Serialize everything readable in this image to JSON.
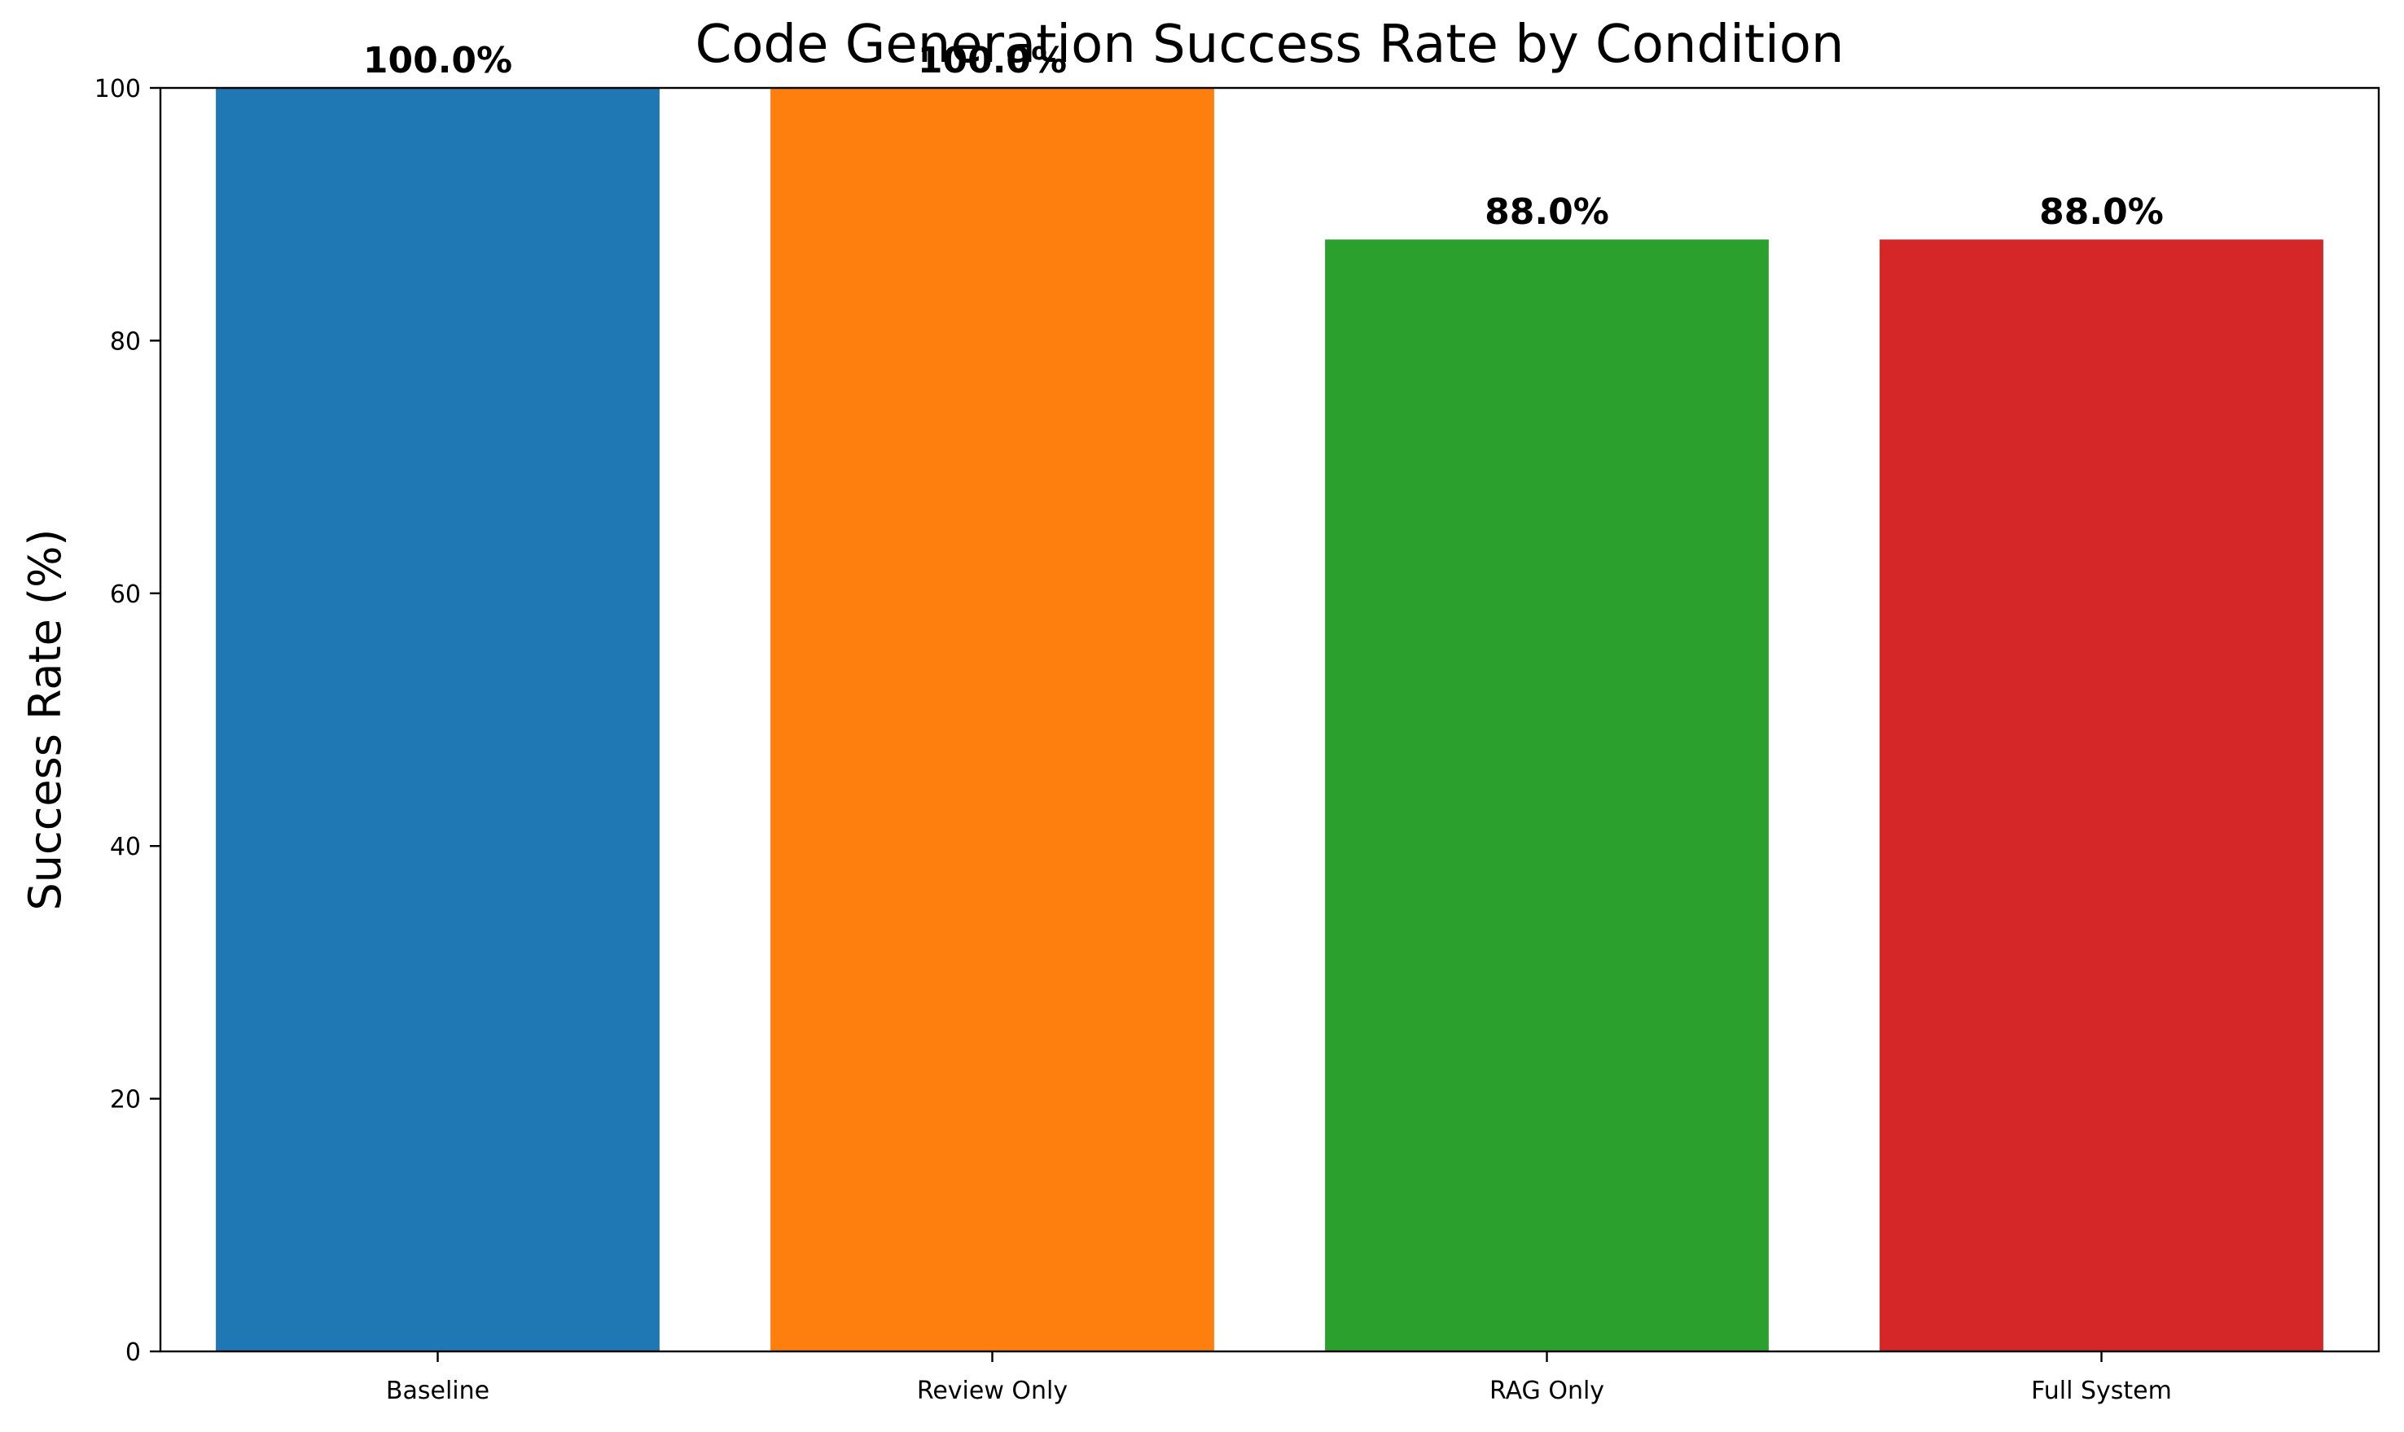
{
  "chart_data": {
    "type": "bar",
    "title": "Code Generation Success Rate by Condition",
    "xlabel": "",
    "ylabel": "Success Rate (%)",
    "categories": [
      "Baseline",
      "Review Only",
      "RAG Only",
      "Full System"
    ],
    "values": [
      100.0,
      100.0,
      88.0,
      88.0
    ],
    "value_labels": [
      "100.0%",
      "100.0%",
      "88.0%",
      "88.0%"
    ],
    "colors": [
      "#1f77b4",
      "#ff7f0e",
      "#2ca02c",
      "#d62728"
    ],
    "ylim": [
      0,
      100
    ],
    "yticks": [
      0,
      20,
      40,
      60,
      80,
      100
    ],
    "grid": false,
    "legend": "none"
  }
}
